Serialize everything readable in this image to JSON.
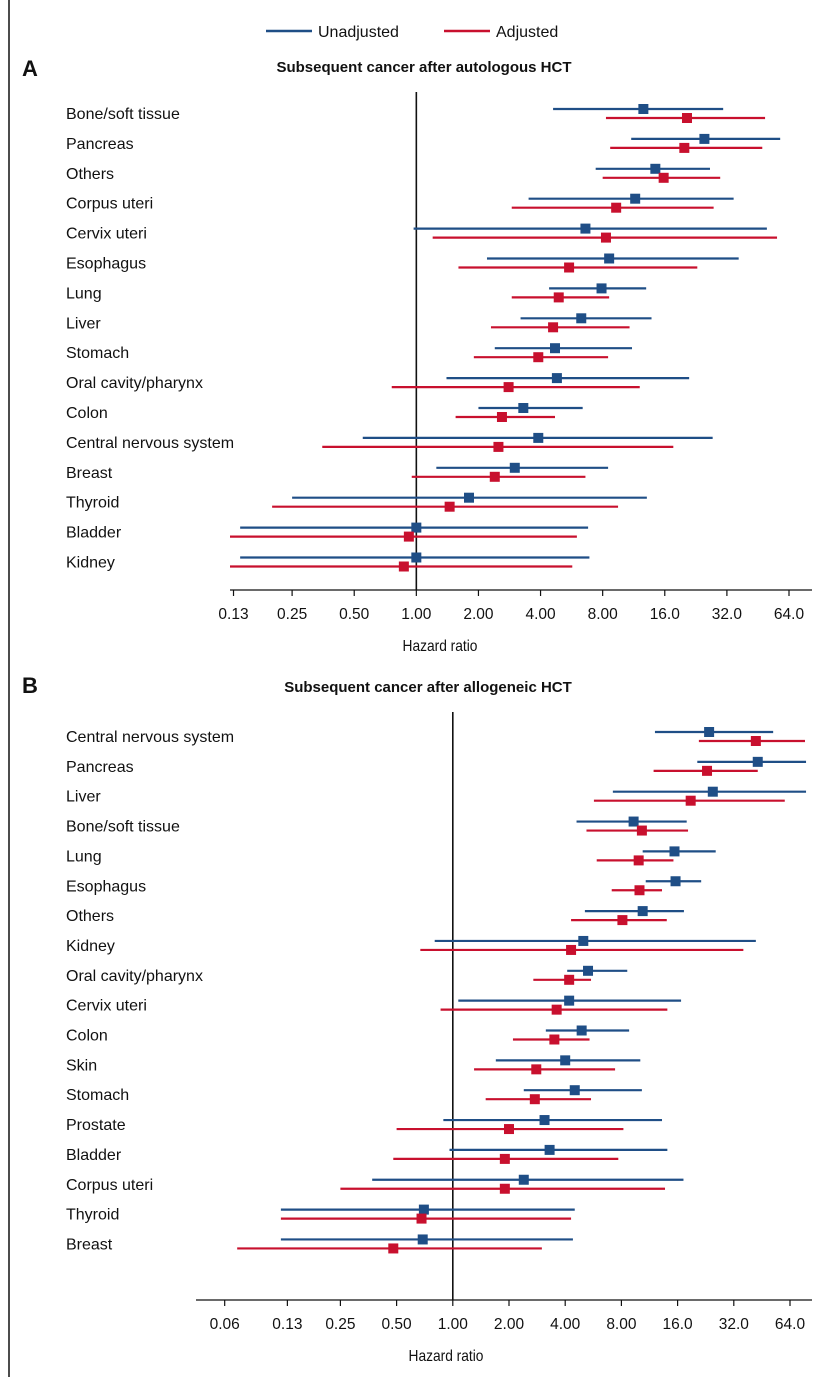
{
  "colors": {
    "unadjusted": "#1f4e86",
    "adjusted": "#c8102e"
  },
  "legend": {
    "unadjusted": "Unadjusted",
    "adjusted": "Adjusted"
  },
  "chart_data": [
    {
      "type": "forest",
      "panel": "A",
      "title": "Subsequent cancer after autologous HCT",
      "xlabel": "Hazard ratio",
      "xscale": "log2",
      "xlim": [
        0.1,
        80
      ],
      "tick_values": [
        0.13,
        0.25,
        0.5,
        1,
        2,
        4,
        8,
        16,
        32,
        64
      ],
      "tick_labels": [
        "0.13",
        "0.25",
        "0.50",
        "1.00",
        "2.00",
        "4.00",
        "8.00",
        "16.0",
        "32.0",
        "64.0"
      ],
      "categories": [
        "Bone/soft tissue",
        "Pancreas",
        "Others",
        "Corpus uteri",
        "Cervix uteri",
        "Esophagus",
        "Lung",
        "Liver",
        "Stomach",
        "Oral cavity/pharynx",
        "Colon",
        "Central nervous system",
        "Breast",
        "Thyroid",
        "Bladder",
        "Kidney"
      ],
      "series": [
        {
          "name": "Unadjusted",
          "estimate": [
            12.6,
            24.9,
            14.4,
            11.5,
            6.6,
            8.6,
            7.9,
            6.3,
            4.7,
            4.8,
            3.3,
            3.9,
            3.0,
            1.8,
            1.0,
            1.0
          ],
          "lower": [
            4.6,
            11.0,
            7.4,
            3.5,
            0.97,
            2.2,
            4.4,
            3.2,
            2.4,
            1.4,
            2.0,
            0.55,
            1.25,
            0.25,
            0.14,
            0.14
          ],
          "upper": [
            30.7,
            58.0,
            26.5,
            34.5,
            50.0,
            36.5,
            13.0,
            13.8,
            11.1,
            21.0,
            6.4,
            27.3,
            8.5,
            13.1,
            6.8,
            6.9
          ]
        },
        {
          "name": "Adjusted",
          "estimate": [
            20.5,
            19.9,
            15.8,
            9.3,
            8.3,
            5.5,
            4.9,
            4.6,
            3.9,
            2.8,
            2.6,
            2.5,
            2.4,
            1.45,
            0.92,
            0.87
          ],
          "lower": [
            8.3,
            8.7,
            8.0,
            2.9,
            1.2,
            1.6,
            2.9,
            2.3,
            1.9,
            0.76,
            1.55,
            0.35,
            0.95,
            0.2,
            0.12,
            0.11
          ],
          "upper": [
            49.0,
            47.5,
            29.7,
            27.6,
            56.0,
            23.0,
            8.6,
            10.8,
            8.5,
            12.1,
            4.7,
            17.6,
            6.6,
            9.5,
            6.0,
            5.7
          ]
        }
      ]
    },
    {
      "type": "forest",
      "panel": "B",
      "title": "Subsequent cancer after allogeneic HCT",
      "xlabel": "Hazard ratio",
      "xscale": "log2",
      "xlim": [
        0.045,
        80
      ],
      "tick_values": [
        0.06,
        0.13,
        0.25,
        0.5,
        1,
        2,
        4,
        8,
        16,
        32,
        64
      ],
      "tick_labels": [
        "0.06",
        "0.13",
        "0.25",
        "0.50",
        "1.00",
        "2.00",
        "4.00",
        "8.00",
        "16.0",
        "32.0",
        "64.0"
      ],
      "categories": [
        "Central nervous system",
        "Pancreas",
        "Liver",
        "Bone/soft tissue",
        "Lung",
        "Esophagus",
        "Others",
        "Kidney",
        "Oral cavity/pharynx",
        "Cervix uteri",
        "Colon",
        "Skin",
        "Stomach",
        "Prostate",
        "Bladder",
        "Corpus uteri",
        "Thyroid",
        "Breast"
      ],
      "series": [
        {
          "name": "Unadjusted",
          "estimate": [
            23.6,
            43.0,
            24.7,
            9.3,
            15.4,
            15.6,
            10.4,
            5.0,
            5.3,
            4.2,
            4.9,
            4.0,
            4.5,
            3.1,
            3.3,
            2.4,
            0.7,
            0.69
          ],
          "lower": [
            12.1,
            20.4,
            7.2,
            4.6,
            10.4,
            10.8,
            5.1,
            0.8,
            4.1,
            1.07,
            3.15,
            1.7,
            2.4,
            0.89,
            0.96,
            0.37,
            0.12,
            0.12
          ],
          "upper": [
            52.0,
            78.0,
            78.0,
            17.9,
            25.6,
            21.4,
            17.3,
            42.0,
            8.6,
            16.7,
            8.8,
            10.1,
            10.3,
            13.2,
            14.1,
            17.2,
            4.5,
            4.4
          ]
        },
        {
          "name": "Adjusted",
          "estimate": [
            42.0,
            23.0,
            18.8,
            10.3,
            9.9,
            10.0,
            8.1,
            4.3,
            4.2,
            3.6,
            3.5,
            2.8,
            2.75,
            2.0,
            1.9,
            1.9,
            0.68,
            0.48
          ],
          "lower": [
            20.8,
            11.9,
            5.7,
            5.2,
            5.9,
            7.1,
            4.3,
            0.67,
            2.7,
            0.86,
            2.1,
            1.3,
            1.5,
            0.5,
            0.48,
            0.25,
            0.12,
            0.07
          ],
          "upper": [
            77.0,
            43.0,
            60.0,
            18.2,
            15.2,
            13.2,
            14.0,
            36.0,
            5.5,
            14.1,
            5.4,
            7.4,
            5.5,
            8.2,
            7.7,
            13.7,
            4.3,
            3.0
          ]
        }
      ]
    }
  ]
}
